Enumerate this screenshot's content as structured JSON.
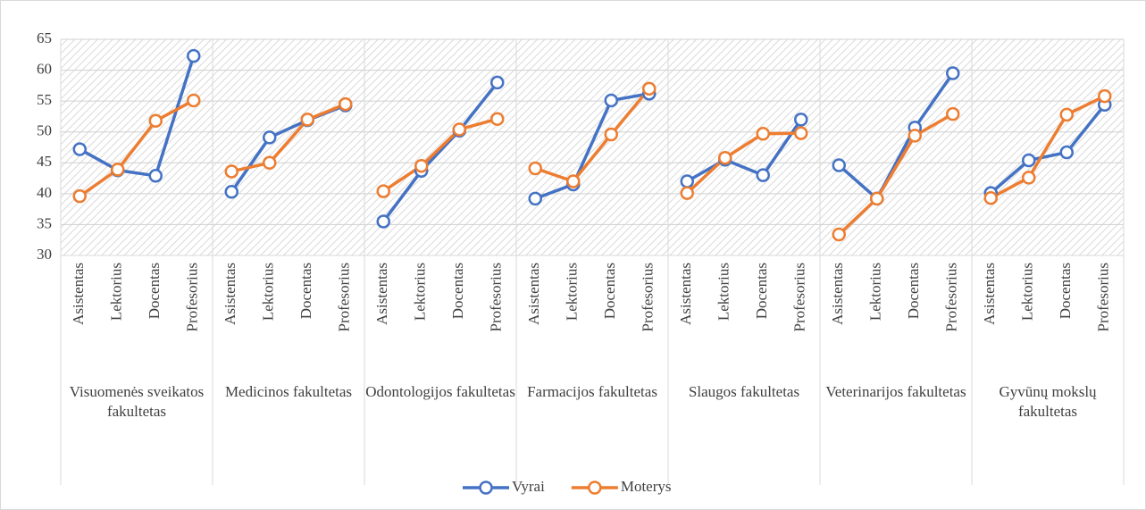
{
  "chart_data": {
    "type": "line",
    "groups": [
      {
        "name": "Visuomenės sveikatos fakultetas",
        "categories": [
          "Asistentas",
          "Lektorius",
          "Docentas",
          "Profesorius"
        ]
      },
      {
        "name": "Medicinos fakultetas",
        "categories": [
          "Asistentas",
          "Lektorius",
          "Docentas",
          "Profesorius"
        ]
      },
      {
        "name": "Odontologijos fakultetas",
        "categories": [
          "Asistentas",
          "Lektorius",
          "Docentas",
          "Profesorius"
        ]
      },
      {
        "name": "Farmacijos fakultetas",
        "categories": [
          "Asistentas",
          "Lektorius",
          "Docentas",
          "Profesorius"
        ]
      },
      {
        "name": "Slaugos fakultetas",
        "categories": [
          "Asistentas",
          "Lektorius",
          "Docentas",
          "Profesorius"
        ]
      },
      {
        "name": "Veterinarijos fakultetas",
        "categories": [
          "Asistentas",
          "Lektorius",
          "Docentas",
          "Profesorius"
        ]
      },
      {
        "name": "Gyvūnų mokslų fakultetas",
        "categories": [
          "Asistentas",
          "Lektorius",
          "Docentas",
          "Profesorius"
        ]
      }
    ],
    "series": [
      {
        "name": "Vyrai",
        "color": "#4472c4",
        "values": [
          [
            47.2,
            43.8,
            42.9,
            62.3
          ],
          [
            40.3,
            49.1,
            51.9,
            54.3
          ],
          [
            35.5,
            43.7,
            50.2,
            58.0
          ],
          [
            39.2,
            41.5,
            55.1,
            56.2
          ],
          [
            42.0,
            45.5,
            43.0,
            52.0
          ],
          [
            44.6,
            39.2,
            50.7,
            59.5
          ],
          [
            40.1,
            45.4,
            46.7,
            54.4
          ]
        ]
      },
      {
        "name": "Moterys",
        "color": "#ed7d31",
        "values": [
          [
            39.6,
            43.9,
            51.8,
            55.1
          ],
          [
            43.6,
            45.0,
            52.0,
            54.5
          ],
          [
            40.4,
            44.5,
            50.4,
            52.1
          ],
          [
            44.1,
            42.0,
            49.6,
            57.0
          ],
          [
            40.1,
            45.8,
            49.7,
            49.8
          ],
          [
            33.4,
            39.2,
            49.4,
            52.9
          ],
          [
            39.3,
            42.6,
            52.8,
            55.8
          ]
        ]
      }
    ],
    "ylim": [
      30,
      65
    ],
    "yticks": [
      30,
      35,
      40,
      45,
      50,
      55,
      60,
      65
    ],
    "grid": true,
    "legend": "bottom"
  }
}
